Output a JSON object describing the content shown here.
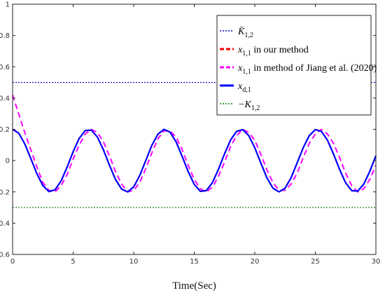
{
  "chart_data": {
    "type": "line",
    "title": "",
    "xlabel": "Time(Sec)",
    "ylabel": "",
    "xlim": [
      0,
      30
    ],
    "ylim": [
      -0.6,
      1
    ],
    "grid": false,
    "legend_position": "top-right",
    "x_ticks": [
      "0",
      "5",
      "10",
      "15",
      "20",
      "25",
      "30"
    ],
    "y_ticks": [
      "-0.6",
      "-0.4",
      "-0.2",
      "0",
      "0.2",
      "0.4",
      "0.6",
      "0.8",
      "1"
    ],
    "series": [
      {
        "name": "K̄1,2",
        "style": "dotted",
        "color": "#0000cc",
        "x": [
          0,
          30
        ],
        "y": [
          0.5,
          0.5
        ]
      },
      {
        "name": "x1,1 in our method",
        "style": "dashed",
        "color": "#ff0000",
        "x": [
          0,
          0.5,
          1,
          1.5,
          2,
          2.5,
          3,
          3.5,
          4,
          4.5,
          5,
          5.5,
          6,
          6.5,
          7,
          7.5,
          8,
          8.5,
          9,
          9.5,
          10,
          10.5,
          11,
          11.5,
          12,
          12.5,
          13,
          13.5,
          14,
          14.5,
          15,
          15.5,
          16,
          16.5,
          17,
          17.5,
          18,
          18.5,
          19,
          19.5,
          20,
          20.5,
          21,
          21.5,
          22,
          22.5,
          23,
          23.5,
          24,
          24.5,
          25,
          25.5,
          26,
          26.5,
          27,
          27.5,
          28,
          28.5,
          29,
          29.5,
          30
        ],
        "y": [
          0.2,
          0.176,
          0.108,
          0.014,
          -0.083,
          -0.16,
          -0.198,
          -0.187,
          -0.131,
          -0.042,
          0.057,
          0.142,
          0.192,
          0.195,
          0.151,
          0.069,
          -0.03,
          -0.121,
          -0.182,
          -0.2,
          -0.168,
          -0.095,
          0.001,
          0.098,
          0.169,
          0.2,
          0.182,
          0.12,
          0.027,
          -0.07,
          -0.152,
          -0.196,
          -0.192,
          -0.141,
          -0.055,
          0.043,
          0.132,
          0.187,
          0.198,
          0.16,
          0.082,
          -0.016,
          -0.11,
          -0.176,
          -0.2,
          -0.176,
          -0.109,
          -0.014,
          0.083,
          0.16,
          0.198,
          0.187,
          0.131,
          0.042,
          -0.056,
          -0.142,
          -0.192,
          -0.195,
          -0.15,
          -0.068,
          0.031
        ]
      },
      {
        "name": "x1,1 in method of Jiang et al. (2020)",
        "style": "dashed",
        "color": "#ff00ff",
        "x": [
          0,
          0.5,
          1,
          1.5,
          2,
          2.5,
          3,
          3.5,
          4,
          4.5,
          5,
          5.5,
          6,
          6.5,
          7,
          7.5,
          8,
          8.5,
          9,
          9.5,
          10,
          10.5,
          11,
          11.5,
          12,
          12.5,
          13,
          13.5,
          14,
          14.5,
          15,
          15.5,
          16,
          16.5,
          17,
          17.5,
          18,
          18.5,
          19,
          19.5,
          20,
          20.5,
          21,
          21.5,
          22,
          22.5,
          23,
          23.5,
          24,
          24.5,
          25,
          25.5,
          26,
          26.5,
          27,
          27.5,
          28,
          28.5,
          29,
          29.5,
          30
        ],
        "y": [
          0.42,
          0.3,
          0.18,
          0.07,
          -0.04,
          -0.14,
          -0.19,
          -0.2,
          -0.16,
          -0.09,
          0.01,
          0.1,
          0.17,
          0.2,
          0.18,
          0.12,
          0.03,
          -0.07,
          -0.15,
          -0.2,
          -0.19,
          -0.14,
          -0.05,
          0.05,
          0.14,
          0.19,
          0.19,
          0.15,
          0.07,
          -0.03,
          -0.12,
          -0.18,
          -0.2,
          -0.17,
          -0.1,
          -0.01,
          0.09,
          0.16,
          0.2,
          0.18,
          0.13,
          0.04,
          -0.06,
          -0.14,
          -0.19,
          -0.19,
          -0.15,
          -0.08,
          0.02,
          0.11,
          0.17,
          0.2,
          0.17,
          0.11,
          0.02,
          -0.08,
          -0.16,
          -0.2,
          -0.18,
          -0.12,
          -0.03
        ]
      },
      {
        "name": "xd,1",
        "style": "solid",
        "color": "#0000ff",
        "x": [
          0,
          0.5,
          1,
          1.5,
          2,
          2.5,
          3,
          3.5,
          4,
          4.5,
          5,
          5.5,
          6,
          6.5,
          7,
          7.5,
          8,
          8.5,
          9,
          9.5,
          10,
          10.5,
          11,
          11.5,
          12,
          12.5,
          13,
          13.5,
          14,
          14.5,
          15,
          15.5,
          16,
          16.5,
          17,
          17.5,
          18,
          18.5,
          19,
          19.5,
          20,
          20.5,
          21,
          21.5,
          22,
          22.5,
          23,
          23.5,
          24,
          24.5,
          25,
          25.5,
          26,
          26.5,
          27,
          27.5,
          28,
          28.5,
          29,
          29.5,
          30
        ],
        "y": [
          0.2,
          0.176,
          0.108,
          0.014,
          -0.083,
          -0.16,
          -0.198,
          -0.187,
          -0.131,
          -0.042,
          0.057,
          0.142,
          0.192,
          0.195,
          0.151,
          0.069,
          -0.03,
          -0.121,
          -0.182,
          -0.2,
          -0.168,
          -0.095,
          0.001,
          0.098,
          0.169,
          0.2,
          0.182,
          0.12,
          0.027,
          -0.07,
          -0.152,
          -0.196,
          -0.192,
          -0.141,
          -0.055,
          0.043,
          0.132,
          0.187,
          0.198,
          0.16,
          0.082,
          -0.016,
          -0.11,
          -0.176,
          -0.2,
          -0.176,
          -0.109,
          -0.014,
          0.083,
          0.16,
          0.198,
          0.187,
          0.131,
          0.042,
          -0.056,
          -0.142,
          -0.192,
          -0.195,
          -0.15,
          -0.068,
          0.031
        ]
      },
      {
        "name": "−K1,2",
        "style": "dotted",
        "color": "#008000",
        "x": [
          0,
          30
        ],
        "y": [
          -0.3,
          -0.3
        ]
      }
    ]
  },
  "legend_labels": [
    {
      "main": "K̄",
      "sub": "1,2",
      "after": ""
    },
    {
      "main": "x",
      "sub": "1,1",
      "after": " in our method"
    },
    {
      "main": "x",
      "sub": "1,1",
      "after": " in method of Jiang et al. (2020)"
    },
    {
      "main": "x",
      "sub": "d,1",
      "after": ""
    },
    {
      "main": "−K",
      "sub": "1,2",
      "after": ""
    }
  ]
}
